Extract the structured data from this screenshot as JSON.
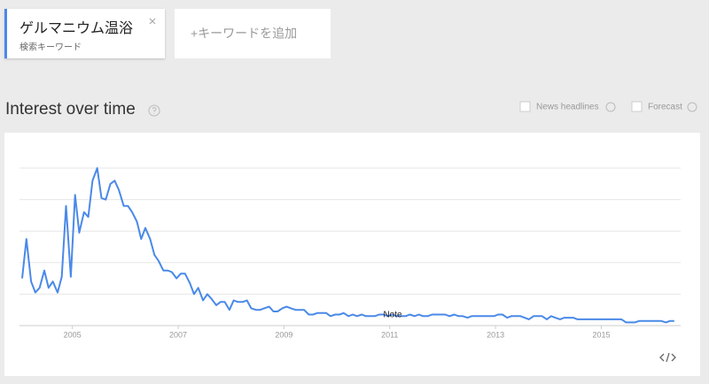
{
  "search_term": {
    "label": "ゲルマニウム温浴",
    "sublabel": "検索キーワード"
  },
  "add_term": "+キーワードを追加",
  "section_title": "Interest over time",
  "options": [
    "News headlines",
    "Forecast"
  ],
  "chart_data": {
    "type": "line",
    "color": "#4a89e8",
    "grid": true,
    "annotation": "Note",
    "xlim": [
      2004,
      2016.5
    ],
    "xticks": [
      2005,
      2007,
      2009,
      2011,
      2013,
      2015
    ],
    "ylim": [
      0,
      100
    ],
    "yticks": [
      0,
      20,
      40,
      60,
      80,
      100
    ],
    "x": [
      2004.05,
      2004.13,
      2004.22,
      2004.3,
      2004.38,
      2004.47,
      2004.55,
      2004.63,
      2004.72,
      2004.8,
      2004.88,
      2004.97,
      2005.05,
      2005.13,
      2005.22,
      2005.3,
      2005.38,
      2005.47,
      2005.55,
      2005.63,
      2005.72,
      2005.8,
      2005.88,
      2005.97,
      2006.05,
      2006.13,
      2006.22,
      2006.3,
      2006.38,
      2006.47,
      2006.55,
      2006.63,
      2006.72,
      2006.8,
      2006.88,
      2006.97,
      2007.05,
      2007.13,
      2007.22,
      2007.3,
      2007.38,
      2007.47,
      2007.55,
      2007.63,
      2007.72,
      2007.8,
      2007.88,
      2007.97,
      2008.05,
      2008.13,
      2008.22,
      2008.3,
      2008.38,
      2008.47,
      2008.55,
      2008.63,
      2008.72,
      2008.8,
      2008.88,
      2008.97,
      2009.05,
      2009.13,
      2009.22,
      2009.3,
      2009.38,
      2009.47,
      2009.55,
      2009.63,
      2009.72,
      2009.8,
      2009.88,
      2009.97,
      2010.05,
      2010.13,
      2010.22,
      2010.3,
      2010.38,
      2010.47,
      2010.55,
      2010.63,
      2010.72,
      2010.8,
      2010.88,
      2010.97,
      2011.05,
      2011.13,
      2011.22,
      2011.3,
      2011.38,
      2011.47,
      2011.55,
      2011.63,
      2011.72,
      2011.8,
      2011.88,
      2011.97,
      2012.05,
      2012.13,
      2012.22,
      2012.3,
      2012.38,
      2012.47,
      2012.55,
      2012.63,
      2012.72,
      2012.8,
      2012.88,
      2012.97,
      2013.05,
      2013.13,
      2013.22,
      2013.3,
      2013.38,
      2013.47,
      2013.55,
      2013.63,
      2013.72,
      2013.8,
      2013.88,
      2013.97,
      2014.05,
      2014.13,
      2014.22,
      2014.3,
      2014.38,
      2014.47,
      2014.55,
      2014.63,
      2014.72,
      2014.8,
      2014.88,
      2014.97,
      2015.05,
      2015.13,
      2015.22,
      2015.3,
      2015.38,
      2015.47,
      2015.55,
      2015.63,
      2015.72,
      2015.8,
      2015.88,
      2015.97,
      2016.05,
      2016.13,
      2016.22,
      2016.3,
      2016.38
    ],
    "values": [
      30,
      55,
      28,
      21,
      24,
      35,
      24,
      28,
      21,
      31,
      76,
      31,
      83,
      59,
      72,
      69,
      92,
      100,
      81,
      80,
      90,
      92,
      86,
      76,
      76,
      72,
      66,
      55,
      62,
      55,
      45,
      41,
      35,
      35,
      34,
      30,
      33,
      33,
      27,
      20,
      24,
      16,
      20,
      17,
      13,
      15,
      15,
      10,
      16,
      15,
      15,
      16,
      11,
      10,
      10,
      11,
      12,
      9,
      9,
      11,
      12,
      11,
      10,
      10,
      10,
      7,
      7,
      8,
      8,
      8,
      6,
      7,
      7,
      8,
      6,
      7,
      6,
      7,
      6,
      6,
      6,
      7,
      7,
      6,
      7,
      6,
      6,
      6,
      7,
      6,
      7,
      6,
      6,
      7,
      7,
      7,
      7,
      6,
      7,
      6,
      6,
      5,
      6,
      6,
      6,
      6,
      6,
      6,
      7,
      7,
      5,
      6,
      6,
      6,
      5,
      4,
      6,
      6,
      6,
      4,
      6,
      5,
      4,
      5,
      5,
      5,
      4,
      4,
      4,
      4,
      4,
      4,
      4,
      4,
      4,
      4,
      4,
      2,
      2,
      2,
      3,
      3,
      3,
      3,
      3,
      3,
      2,
      3,
      3
    ]
  }
}
